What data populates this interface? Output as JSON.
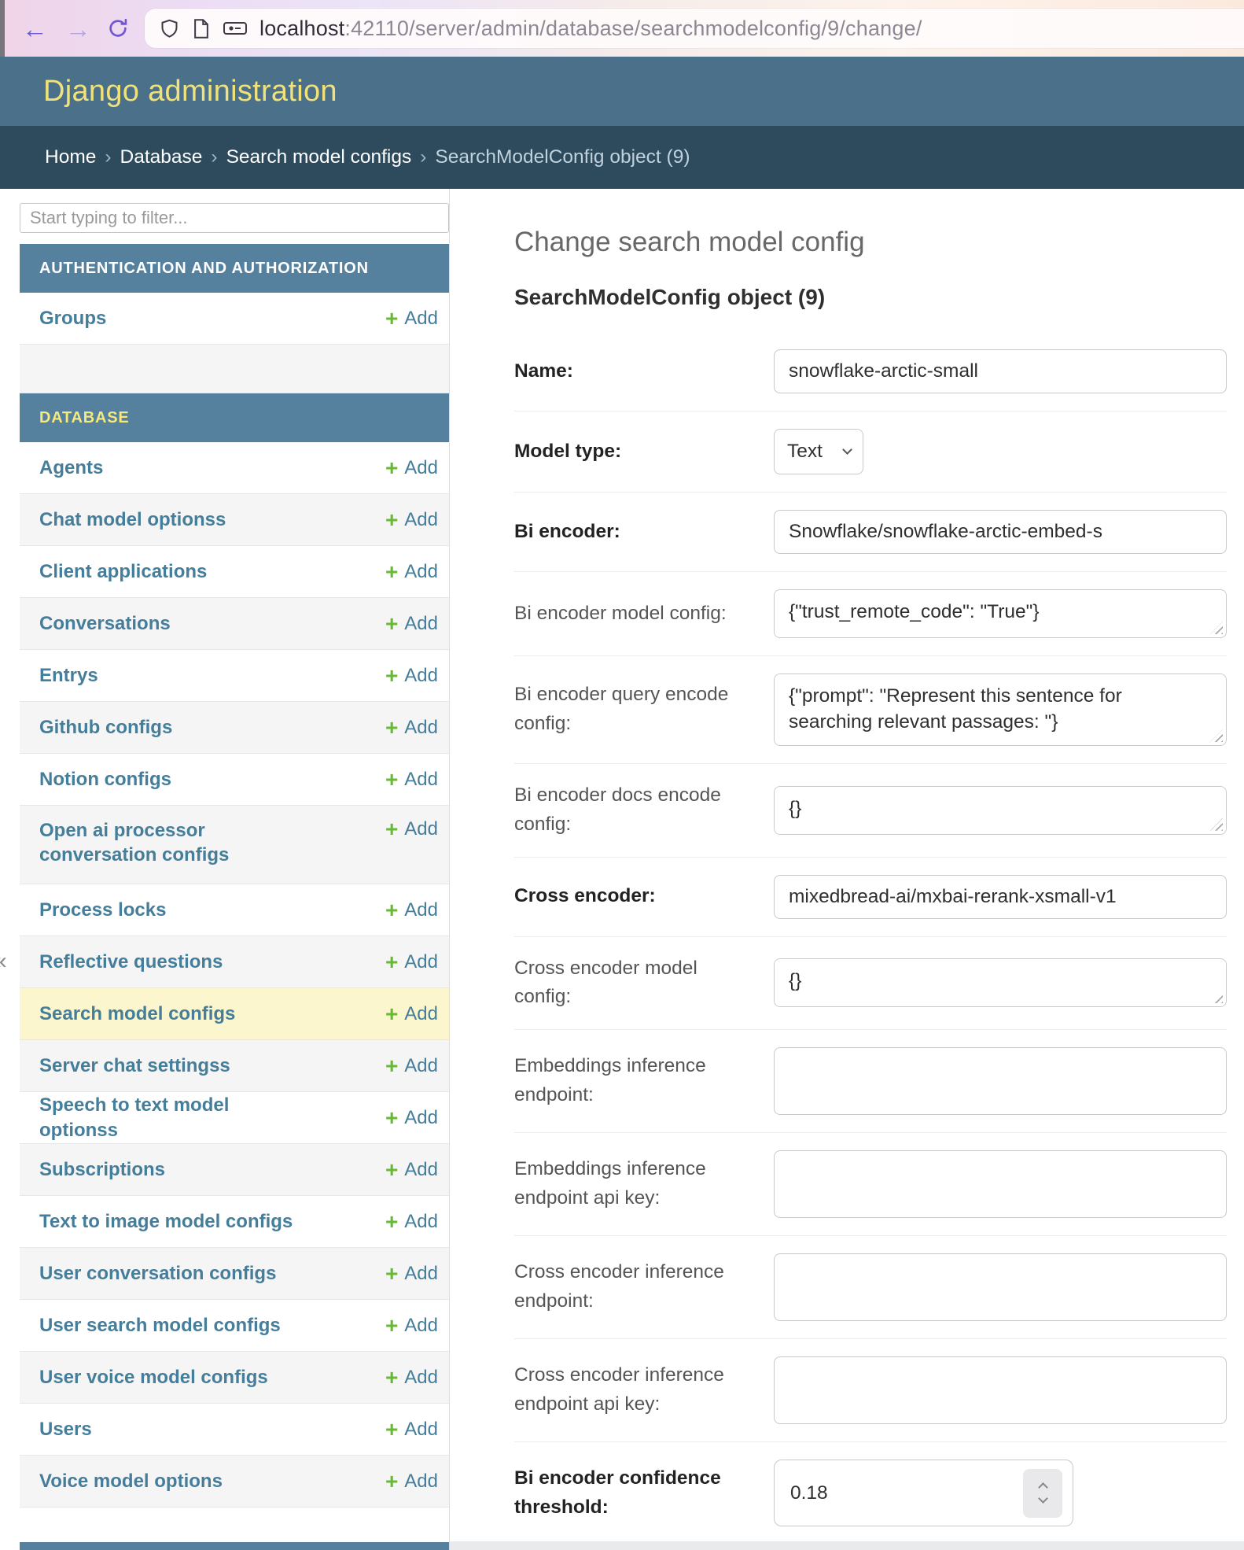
{
  "browser": {
    "url_host": "localhost",
    "url_path": ":42110/server/admin/database/searchmodelconfig/9/change/",
    "back_glyph": "←",
    "forward_glyph": "→"
  },
  "header": {
    "title": "Django administration"
  },
  "breadcrumb": {
    "separator": "›",
    "items": [
      "Home",
      "Database",
      "Search model configs"
    ],
    "current": "SearchModelConfig object (9)"
  },
  "sidebar": {
    "filter_placeholder": "Start typing to filter...",
    "toggle_glyph": "«",
    "add_label": "Add",
    "plus_glyph": "+",
    "sections": [
      {
        "label": "AUTHENTICATION AND AUTHORIZATION",
        "current": false,
        "items": [
          {
            "label": "Groups"
          },
          {
            "label": "",
            "empty": true
          }
        ]
      },
      {
        "label": "DATABASE",
        "current": true,
        "items": [
          {
            "label": "Agents"
          },
          {
            "label": "Chat model optionss"
          },
          {
            "label": "Client applications"
          },
          {
            "label": "Conversations"
          },
          {
            "label": "Entrys"
          },
          {
            "label": "Github configs"
          },
          {
            "label": "Notion configs"
          },
          {
            "label": "Open ai processor conversation configs",
            "two_line": true
          },
          {
            "label": "Process locks"
          },
          {
            "label": "Reflective questions"
          },
          {
            "label": "Search model configs",
            "highlight": true
          },
          {
            "label": "Server chat settingss"
          },
          {
            "label": "Speech to text model optionss"
          },
          {
            "label": "Subscriptions"
          },
          {
            "label": "Text to image model configs"
          },
          {
            "label": "User conversation configs"
          },
          {
            "label": "User search model configs"
          },
          {
            "label": "User voice model configs"
          },
          {
            "label": "Users"
          },
          {
            "label": "Voice model options"
          },
          {
            "label": "",
            "empty": true,
            "tail": true
          }
        ]
      }
    ]
  },
  "main": {
    "page_title": "Change search model config",
    "object_title": "SearchModelConfig object (9)",
    "fields": [
      {
        "label": "Name:",
        "type": "text",
        "value": "snowflake-arctic-small",
        "required": true
      },
      {
        "label": "Model type:",
        "type": "select",
        "value": "Text",
        "required": true
      },
      {
        "label": "Bi encoder:",
        "type": "text",
        "value": "Snowflake/snowflake-arctic-embed-s",
        "required": true
      },
      {
        "label": "Bi encoder model config:",
        "type": "textarea",
        "rows": 1,
        "value": "{\"trust_remote_code\": \"True\"}"
      },
      {
        "label": "Bi encoder query encode config:",
        "type": "textarea",
        "rows": 2,
        "value": "{\"prompt\": \"Represent this sentence for searching relevant passages: \"}"
      },
      {
        "label": "Bi encoder docs encode config:",
        "type": "textarea",
        "rows": 1,
        "value": "{}"
      },
      {
        "label": "Cross encoder:",
        "type": "text",
        "value": "mixedbread-ai/mxbai-rerank-xsmall-v1",
        "required": true
      },
      {
        "label": "Cross encoder model config:",
        "type": "textarea",
        "rows": 1,
        "value": "{}"
      },
      {
        "label": "Embeddings inference endpoint:",
        "type": "text-tall",
        "value": ""
      },
      {
        "label": "Embeddings inference endpoint api key:",
        "type": "text-tall",
        "value": ""
      },
      {
        "label": "Cross encoder inference endpoint:",
        "type": "text-tall",
        "value": ""
      },
      {
        "label": "Cross encoder inference endpoint api key:",
        "type": "text-tall",
        "value": ""
      },
      {
        "label": "Bi encoder confidence threshold:",
        "type": "number",
        "value": "0.18",
        "required": true
      }
    ]
  },
  "colors": {
    "header_bg": "#4b7089",
    "breadcrumb_bg": "#2e4b5e",
    "caption_bg": "#55809e",
    "link": "#447e9b",
    "add_green": "#66bb33",
    "highlight_row": "#fbf6cd",
    "header_title_yellow": "#f0e17a",
    "current_app_yellow": "#f3e97e"
  }
}
